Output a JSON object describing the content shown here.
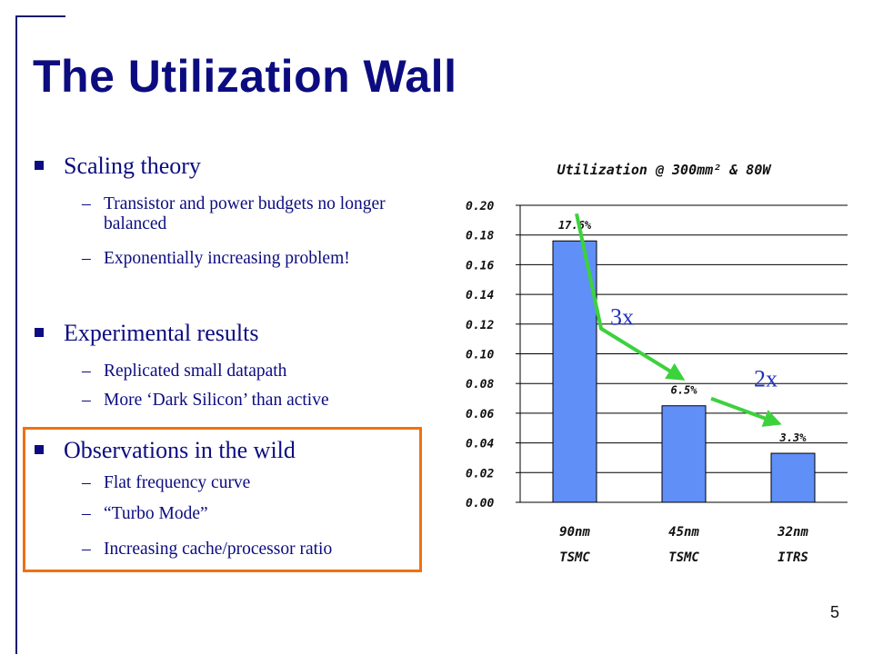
{
  "slide": {
    "title": "The Utilization Wall",
    "page_number": "5"
  },
  "bullets": [
    {
      "label": "Scaling theory",
      "subs": [
        "Transistor and power budgets no longer balanced",
        "Exponentially increasing problem!"
      ]
    },
    {
      "label": "Experimental results",
      "subs": [
        "Replicated small datapath",
        "More ‘Dark Silicon’ than active"
      ]
    },
    {
      "label": "Observations in the wild",
      "subs": [
        "Flat frequency curve",
        "“Turbo Mode”",
        "Increasing cache/processor ratio"
      ]
    }
  ],
  "dash": "–",
  "colors": {
    "title": "#0c0c80",
    "bar": "#5f8ff7",
    "arrow": "#3cd23c",
    "annotation": "#2233bb",
    "highlight_box": "#f07010"
  },
  "chart_data": {
    "type": "bar",
    "title": "Utilization @ 300mm² & 80W",
    "categories": [
      [
        "90nm",
        "TSMC"
      ],
      [
        "45nm",
        "TSMC"
      ],
      [
        "32nm",
        "ITRS"
      ]
    ],
    "values": [
      0.176,
      0.065,
      0.033
    ],
    "data_labels": [
      "17.6%",
      "6.5%",
      "3.3%"
    ],
    "yticks": [
      "0.00",
      "0.02",
      "0.04",
      "0.06",
      "0.08",
      "0.10",
      "0.12",
      "0.14",
      "0.16",
      "0.18",
      "0.20"
    ],
    "ylim": [
      0,
      0.2
    ],
    "grid": true,
    "annotations": [
      {
        "text": "3x",
        "from_category": 0,
        "to_category": 1
      },
      {
        "text": "2x",
        "from_category": 1,
        "to_category": 2
      }
    ]
  }
}
